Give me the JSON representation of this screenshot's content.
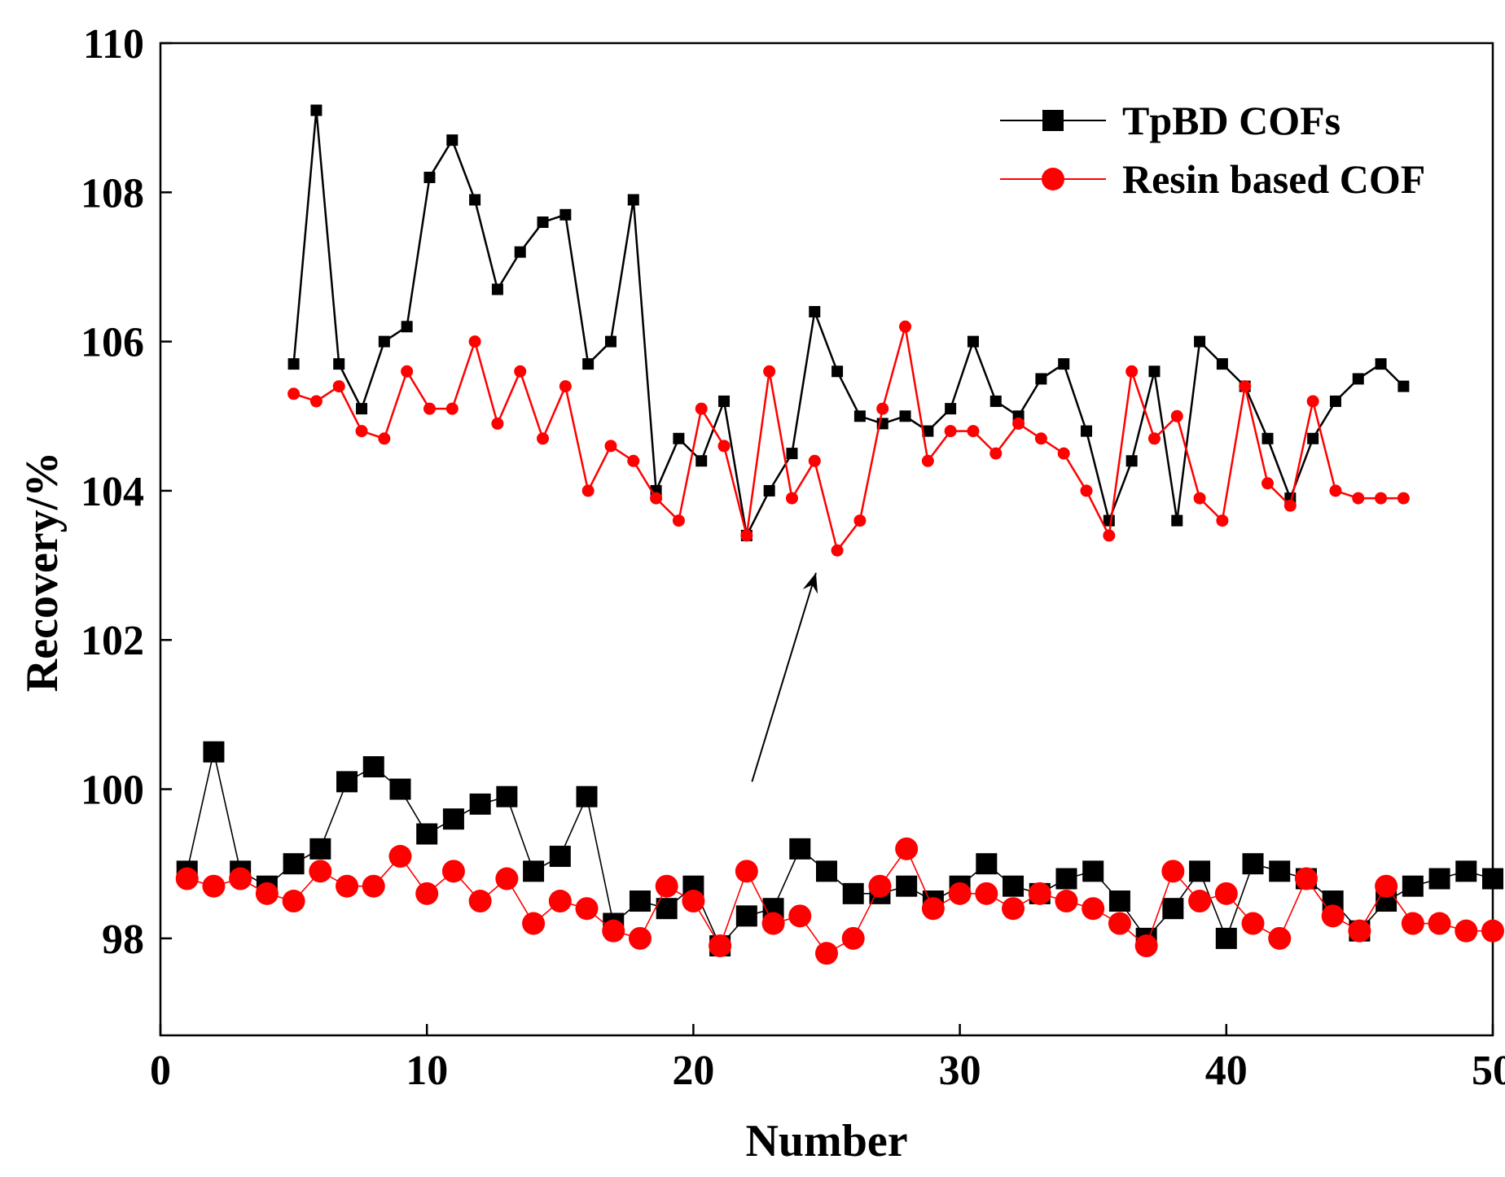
{
  "chart_data": {
    "type": "line",
    "title": "",
    "xlabel": "Number",
    "ylabel": "Recovery/%",
    "xlim": [
      0,
      50
    ],
    "ylim": [
      96.7,
      110
    ],
    "xticks": [
      "0",
      "10",
      "20",
      "30",
      "40",
      "50"
    ],
    "yticks": [
      "98",
      "100",
      "102",
      "104",
      "106",
      "108",
      "110"
    ],
    "legend": {
      "position": "top-right",
      "entries": [
        {
          "label": "TpBD COFs",
          "color": "#000000",
          "marker": "square"
        },
        {
          "label": "Resin based COF",
          "color": "#ff0000",
          "marker": "circle"
        }
      ]
    },
    "annotations": [
      {
        "type": "arrow",
        "from": [
          22.2,
          100.1
        ],
        "to": [
          24.6,
          102.9
        ]
      }
    ],
    "series": [
      {
        "name": "TpBD COFs",
        "group": "lower",
        "color": "#000000",
        "marker": "square",
        "marker_size": "large",
        "x": [
          1,
          2,
          3,
          4,
          5,
          6,
          7,
          8,
          9,
          10,
          11,
          12,
          13,
          14,
          15,
          16,
          17,
          18,
          19,
          20,
          21,
          22,
          23,
          24,
          25,
          26,
          27,
          28,
          29,
          30,
          31,
          32,
          33,
          34,
          35,
          36,
          37,
          38,
          39,
          40,
          41,
          42,
          43,
          44,
          45,
          46,
          47,
          48,
          49,
          50
        ],
        "y": [
          98.9,
          100.5,
          98.9,
          98.7,
          99.0,
          99.2,
          100.1,
          100.3,
          100.0,
          99.4,
          99.6,
          99.8,
          99.9,
          98.9,
          99.1,
          99.9,
          98.2,
          98.5,
          98.4,
          98.7,
          97.9,
          98.3,
          98.4,
          99.2,
          98.9,
          98.6,
          98.6,
          98.7,
          98.5,
          98.7,
          99.0,
          98.7,
          98.6,
          98.8,
          98.9,
          98.5,
          98.0,
          98.4,
          98.9,
          98.0,
          99.0,
          98.9,
          98.8,
          98.5,
          98.1,
          98.5,
          98.7,
          98.8,
          98.9,
          98.8
        ]
      },
      {
        "name": "Resin based COF",
        "group": "lower",
        "color": "#ff0000",
        "marker": "circle",
        "marker_size": "large",
        "x": [
          1,
          2,
          3,
          4,
          5,
          6,
          7,
          8,
          9,
          10,
          11,
          12,
          13,
          14,
          15,
          16,
          17,
          18,
          19,
          20,
          21,
          22,
          23,
          24,
          25,
          26,
          27,
          28,
          29,
          30,
          31,
          32,
          33,
          34,
          35,
          36,
          37,
          38,
          39,
          40,
          41,
          42,
          43,
          44,
          45,
          46,
          47,
          48,
          49,
          50
        ],
        "y": [
          98.8,
          98.7,
          98.8,
          98.6,
          98.5,
          98.9,
          98.7,
          98.7,
          99.1,
          98.6,
          98.9,
          98.5,
          98.8,
          98.2,
          98.5,
          98.4,
          98.1,
          98.0,
          98.7,
          98.5,
          97.9,
          98.9,
          98.2,
          98.3,
          97.8,
          98.0,
          98.7,
          99.2,
          98.4,
          98.6,
          98.6,
          98.4,
          98.6,
          98.5,
          98.4,
          98.2,
          97.9,
          98.9,
          98.5,
          98.6,
          98.2,
          98.0,
          98.8,
          98.3,
          98.1,
          98.7,
          98.2,
          98.2,
          98.1,
          98.1
        ]
      },
      {
        "name": "TpBD COFs (enlarged)",
        "group": "upper",
        "color": "#000000",
        "marker": "square",
        "marker_size": "small",
        "x": [
          5,
          5.85,
          6.7,
          7.55,
          8.4,
          9.25,
          10.1,
          10.95,
          11.8,
          12.65,
          13.5,
          14.35,
          15.2,
          16.05,
          16.9,
          17.75,
          18.6,
          19.45,
          20.3,
          21.15,
          22,
          22.85,
          23.7,
          24.55,
          25.4,
          26.25,
          27.1,
          27.95,
          28.8,
          29.65,
          30.5,
          31.35,
          32.2,
          33.05,
          33.9,
          34.75,
          35.6,
          36.45,
          37.3,
          38.15,
          39,
          39.85,
          40.7,
          41.55,
          42.4,
          43.25,
          44.1,
          44.95,
          45.8,
          46.65
        ],
        "y": [
          105.7,
          109.1,
          105.7,
          105.1,
          106.0,
          106.2,
          108.2,
          108.7,
          107.9,
          106.7,
          107.2,
          107.6,
          107.7,
          105.7,
          106.0,
          107.9,
          104.0,
          104.7,
          104.4,
          105.2,
          103.4,
          104.0,
          104.5,
          106.4,
          105.6,
          105.0,
          104.9,
          105.0,
          104.8,
          105.1,
          106.0,
          105.2,
          105.0,
          105.5,
          105.7,
          104.8,
          103.6,
          104.4,
          105.6,
          103.6,
          106.0,
          105.7,
          105.4,
          104.7,
          103.9,
          104.7,
          105.2,
          105.5,
          105.7,
          105.4
        ]
      },
      {
        "name": "Resin based COF (enlarged)",
        "group": "upper",
        "color": "#ff0000",
        "marker": "circle",
        "marker_size": "small",
        "x": [
          5,
          5.85,
          6.7,
          7.55,
          8.4,
          9.25,
          10.1,
          10.95,
          11.8,
          12.65,
          13.5,
          14.35,
          15.2,
          16.05,
          16.9,
          17.75,
          18.6,
          19.45,
          20.3,
          21.15,
          22,
          22.85,
          23.7,
          24.55,
          25.4,
          26.25,
          27.1,
          27.95,
          28.8,
          29.65,
          30.5,
          31.35,
          32.2,
          33.05,
          33.9,
          34.75,
          35.6,
          36.45,
          37.3,
          38.15,
          39,
          39.85,
          40.7,
          41.55,
          42.4,
          43.25,
          44.1,
          44.95,
          45.8,
          46.65
        ],
        "y": [
          105.3,
          105.2,
          105.4,
          104.8,
          104.7,
          105.6,
          105.1,
          105.1,
          106.0,
          104.9,
          105.6,
          104.7,
          105.4,
          104.0,
          104.6,
          104.4,
          103.9,
          103.6,
          105.1,
          104.6,
          103.4,
          105.6,
          103.9,
          104.4,
          103.2,
          103.6,
          105.1,
          106.2,
          104.4,
          104.8,
          104.8,
          104.5,
          104.9,
          104.7,
          104.5,
          104.0,
          103.4,
          105.6,
          104.7,
          105.0,
          103.9,
          103.6,
          105.4,
          104.1,
          103.8,
          105.2,
          104.0,
          103.9,
          103.9,
          103.9
        ]
      }
    ]
  }
}
